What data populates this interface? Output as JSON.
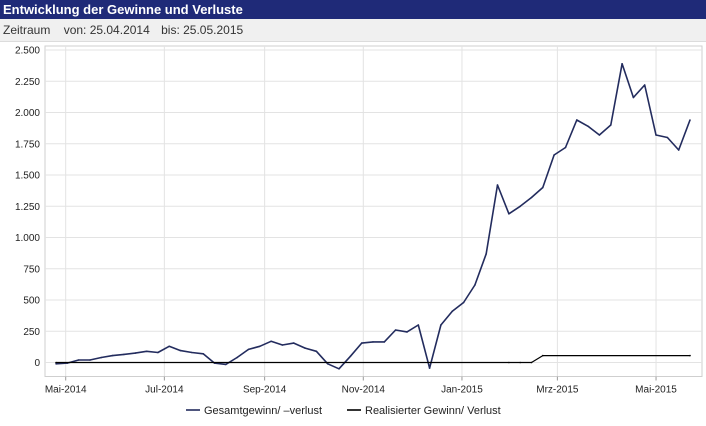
{
  "header": {
    "title": "Entwicklung der Gewinne und Verluste"
  },
  "period": {
    "label": "Zeitraum",
    "from": "von: 25.04.2014",
    "to": "bis: 25.05.2015"
  },
  "colors": {
    "header_bg": "#1f2a78",
    "series_total": "#232c5e",
    "series_realized": "#000000",
    "grid": "#e3e3e3"
  },
  "chart_data": {
    "type": "line",
    "title": "Entwicklung der Gewinne und Verluste",
    "xlabel": "",
    "ylabel": "",
    "ylim": [
      -100,
      2500
    ],
    "xlim_days": [
      0,
      394
    ],
    "x_unit": "days since 25.04.2014",
    "grid": true,
    "legend_position": "bottom-center",
    "y_ticks": [
      0,
      250,
      500,
      750,
      1000,
      1250,
      1500,
      1750,
      2000,
      2250,
      2500
    ],
    "y_tick_labels": [
      "0",
      "250",
      "500",
      "750",
      "1.000",
      "1.250",
      "1.500",
      "1.750",
      "2.000",
      "2.250",
      "2.500"
    ],
    "x_ticks": [
      {
        "day": 6,
        "label": "Mai-2014"
      },
      {
        "day": 67,
        "label": "Jul-2014"
      },
      {
        "day": 129,
        "label": "Sep-2014"
      },
      {
        "day": 190,
        "label": "Nov-2014"
      },
      {
        "day": 251,
        "label": "Jan-2015"
      },
      {
        "day": 310,
        "label": "Mrz-2015"
      },
      {
        "day": 371,
        "label": "Mai-2015"
      }
    ],
    "series": [
      {
        "name": "Gesamtgewinn/ –verlust",
        "color": "#232c5e",
        "x": [
          0,
          7,
          14,
          21,
          28,
          35,
          42,
          49,
          56,
          63,
          70,
          77,
          84,
          91,
          98,
          105,
          112,
          119,
          126,
          133,
          140,
          147,
          154,
          161,
          168,
          175,
          182,
          189,
          196,
          203,
          210,
          217,
          224,
          231,
          238,
          245,
          252,
          259,
          266,
          273,
          280,
          287,
          294,
          301,
          308,
          315,
          322,
          329,
          336,
          343,
          350,
          357,
          364,
          371,
          378,
          385,
          392
        ],
        "values": [
          -10,
          -5,
          20,
          20,
          40,
          55,
          65,
          75,
          90,
          80,
          130,
          95,
          80,
          70,
          -5,
          -15,
          40,
          105,
          130,
          170,
          140,
          155,
          115,
          90,
          -10,
          -50,
          50,
          155,
          165,
          165,
          260,
          245,
          300,
          -45,
          300,
          410,
          480,
          620,
          870,
          1420,
          1190,
          1250,
          1320,
          1400,
          1660,
          1720,
          1940,
          1890,
          1820,
          1900,
          2390,
          2120,
          2220,
          1820,
          1800,
          1700,
          1940
        ]
      },
      {
        "name": "Realisierter Gewinn/ Verlust",
        "color": "#000000",
        "x": [
          0,
          280,
          287,
          294,
          301,
          392
        ],
        "values": [
          0,
          0,
          0,
          0,
          55,
          55
        ]
      }
    ]
  }
}
